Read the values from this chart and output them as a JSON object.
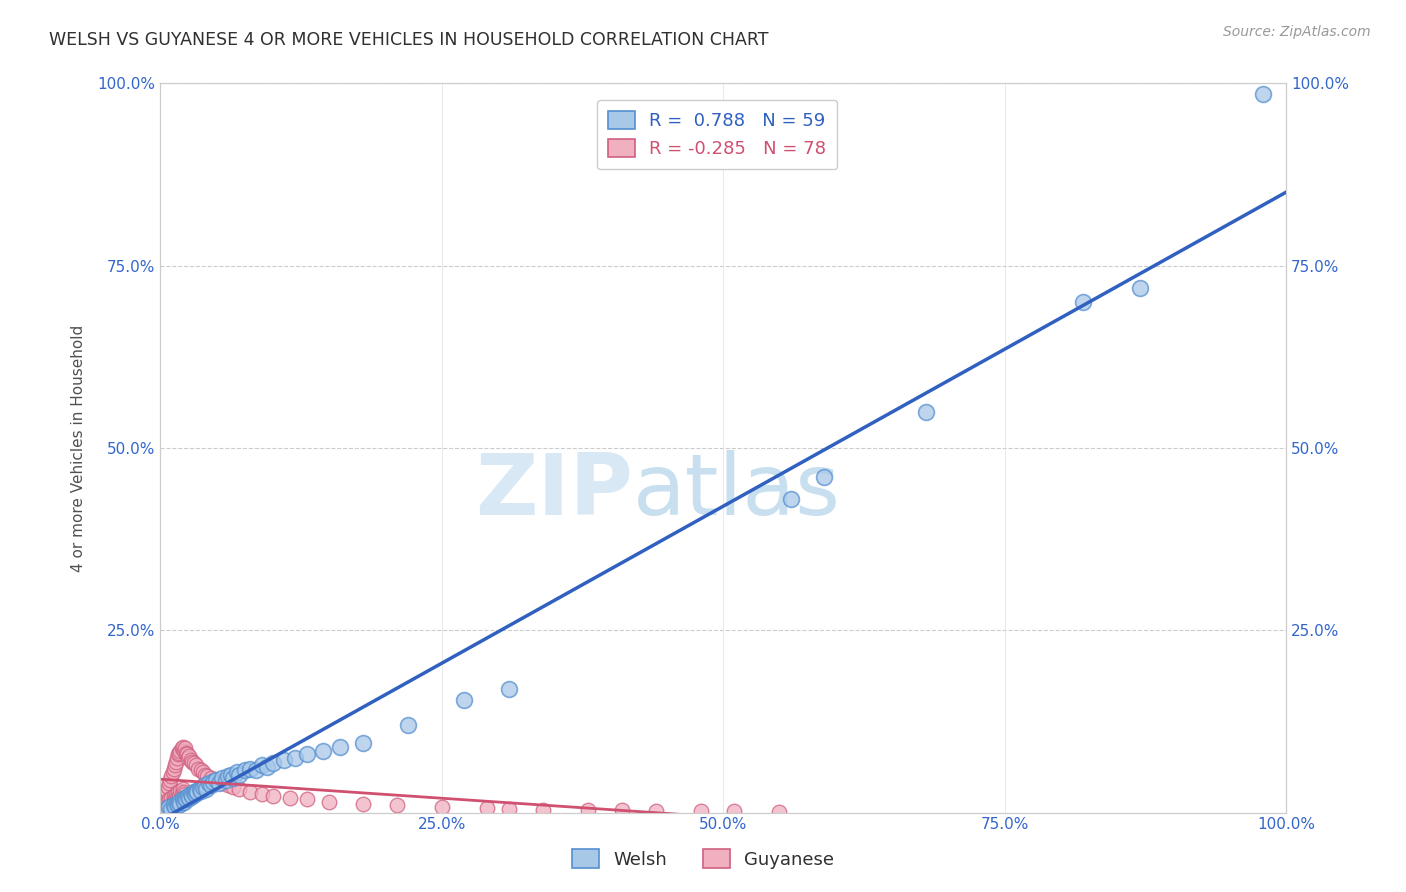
{
  "title": "WELSH VS GUYANESE 4 OR MORE VEHICLES IN HOUSEHOLD CORRELATION CHART",
  "source": "Source: ZipAtlas.com",
  "ylabel": "4 or more Vehicles in Household",
  "watermark_zip": "ZIP",
  "watermark_atlas": "atlas",
  "legend_welsh": "Welsh",
  "legend_guyanese": "Guyanese",
  "welsh_R": 0.788,
  "welsh_N": 59,
  "guyanese_R": -0.285,
  "guyanese_N": 78,
  "welsh_color": "#a8c8e8",
  "welsh_edge_color": "#5590d0",
  "guyanese_color": "#f0b0c0",
  "guyanese_edge_color": "#d06080",
  "welsh_line_color": "#3060c0",
  "guyanese_line_color": "#d05070",
  "background_color": "#ffffff",
  "grid_color": "#cccccc",
  "title_color": "#303030",
  "axis_color": "#3366cc",
  "watermark_color": "#d8e8f5",
  "source_color": "#999999",
  "welsh_x": [
    0.005,
    0.008,
    0.01,
    0.012,
    0.013,
    0.015,
    0.016,
    0.017,
    0.018,
    0.02,
    0.021,
    0.022,
    0.023,
    0.025,
    0.026,
    0.027,
    0.028,
    0.03,
    0.031,
    0.032,
    0.033,
    0.035,
    0.036,
    0.038,
    0.04,
    0.041,
    0.043,
    0.045,
    0.047,
    0.05,
    0.052,
    0.055,
    0.058,
    0.06,
    0.063,
    0.065,
    0.068,
    0.07,
    0.075,
    0.08,
    0.085,
    0.09,
    0.095,
    0.1,
    0.11,
    0.12,
    0.13,
    0.145,
    0.16,
    0.18,
    0.22,
    0.27,
    0.31,
    0.56,
    0.59,
    0.68,
    0.82,
    0.87,
    0.98
  ],
  "welsh_y": [
    0.005,
    0.008,
    0.005,
    0.01,
    0.008,
    0.012,
    0.01,
    0.015,
    0.012,
    0.018,
    0.015,
    0.02,
    0.018,
    0.022,
    0.02,
    0.025,
    0.022,
    0.028,
    0.025,
    0.03,
    0.028,
    0.032,
    0.03,
    0.035,
    0.038,
    0.032,
    0.04,
    0.038,
    0.042,
    0.045,
    0.04,
    0.048,
    0.045,
    0.05,
    0.052,
    0.048,
    0.055,
    0.052,
    0.058,
    0.06,
    0.058,
    0.065,
    0.062,
    0.068,
    0.072,
    0.075,
    0.08,
    0.085,
    0.09,
    0.095,
    0.12,
    0.155,
    0.17,
    0.43,
    0.46,
    0.55,
    0.7,
    0.72,
    0.985
  ],
  "guyanese_x": [
    0.002,
    0.003,
    0.004,
    0.004,
    0.005,
    0.005,
    0.006,
    0.006,
    0.007,
    0.007,
    0.008,
    0.008,
    0.009,
    0.009,
    0.01,
    0.01,
    0.011,
    0.011,
    0.012,
    0.012,
    0.013,
    0.013,
    0.014,
    0.014,
    0.015,
    0.015,
    0.016,
    0.016,
    0.017,
    0.017,
    0.018,
    0.018,
    0.019,
    0.019,
    0.02,
    0.02,
    0.021,
    0.021,
    0.022,
    0.022,
    0.023,
    0.024,
    0.025,
    0.026,
    0.027,
    0.028,
    0.03,
    0.032,
    0.034,
    0.036,
    0.038,
    0.04,
    0.042,
    0.045,
    0.048,
    0.052,
    0.055,
    0.06,
    0.065,
    0.07,
    0.08,
    0.09,
    0.1,
    0.115,
    0.13,
    0.15,
    0.18,
    0.21,
    0.25,
    0.29,
    0.31,
    0.34,
    0.38,
    0.41,
    0.44,
    0.48,
    0.51,
    0.55
  ],
  "guyanese_y": [
    0.015,
    0.008,
    0.02,
    0.012,
    0.025,
    0.01,
    0.03,
    0.015,
    0.035,
    0.01,
    0.04,
    0.018,
    0.045,
    0.012,
    0.05,
    0.02,
    0.055,
    0.015,
    0.06,
    0.022,
    0.065,
    0.018,
    0.07,
    0.025,
    0.075,
    0.02,
    0.08,
    0.028,
    0.082,
    0.022,
    0.085,
    0.03,
    0.088,
    0.025,
    0.09,
    0.032,
    0.085,
    0.028,
    0.088,
    0.025,
    0.082,
    0.08,
    0.075,
    0.078,
    0.072,
    0.07,
    0.068,
    0.065,
    0.06,
    0.058,
    0.055,
    0.052,
    0.05,
    0.048,
    0.045,
    0.042,
    0.04,
    0.038,
    0.035,
    0.032,
    0.028,
    0.025,
    0.022,
    0.02,
    0.018,
    0.015,
    0.012,
    0.01,
    0.008,
    0.006,
    0.005,
    0.004,
    0.003,
    0.003,
    0.002,
    0.002,
    0.002,
    0.001
  ],
  "xlim": [
    0,
    1
  ],
  "ylim": [
    0,
    1
  ],
  "xtick_positions": [
    0,
    0.25,
    0.5,
    0.75,
    1.0
  ],
  "xticklabels": [
    "0.0%",
    "25.0%",
    "50.0%",
    "75.0%",
    "100.0%"
  ],
  "ytick_positions": [
    0,
    0.25,
    0.5,
    0.75,
    1.0
  ],
  "yticklabels_left": [
    "",
    "25.0%",
    "50.0%",
    "75.0%",
    "100.0%"
  ],
  "yticklabels_right": [
    "",
    "25.0%",
    "50.0%",
    "75.0%",
    "100.0%"
  ]
}
